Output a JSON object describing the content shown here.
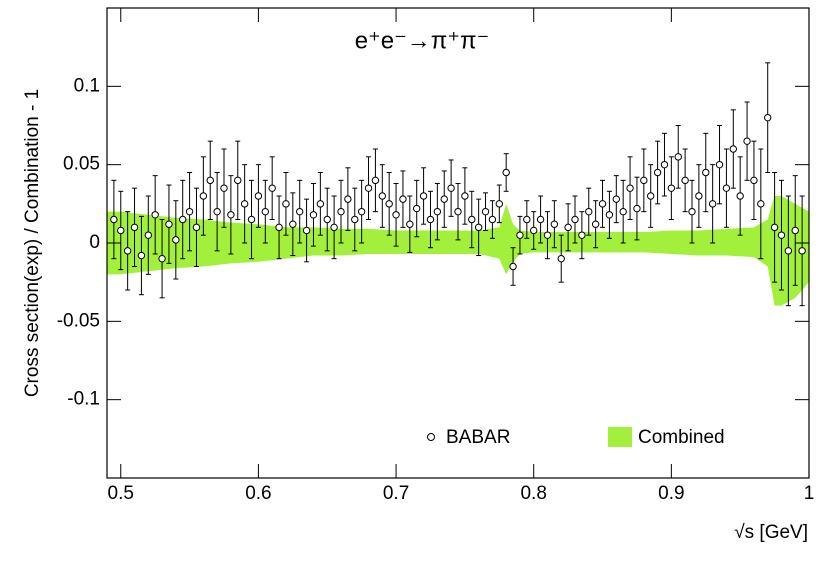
{
  "chart_data": {
    "type": "errorbar",
    "title": "e⁺e⁻→π⁺π⁻",
    "x_label": "√s   [GeV]",
    "y_label": "Cross section(exp) / Combination - 1",
    "xlim": [
      0.49,
      1.0
    ],
    "ylim": [
      -0.15,
      0.15
    ],
    "xticks": [
      0.5,
      0.6,
      0.7,
      0.8,
      0.9,
      1
    ],
    "yticks": [
      -0.1,
      -0.05,
      0,
      0.05,
      0.1
    ],
    "legend": "lower right",
    "series": [
      {
        "name": "BABAR",
        "color": "#000000",
        "x": [
          0.495,
          0.5,
          0.505,
          0.51,
          0.515,
          0.52,
          0.525,
          0.53,
          0.535,
          0.54,
          0.545,
          0.55,
          0.555,
          0.56,
          0.565,
          0.57,
          0.575,
          0.58,
          0.585,
          0.59,
          0.595,
          0.6,
          0.605,
          0.61,
          0.615,
          0.62,
          0.625,
          0.63,
          0.635,
          0.64,
          0.645,
          0.65,
          0.655,
          0.66,
          0.665,
          0.67,
          0.675,
          0.68,
          0.685,
          0.69,
          0.695,
          0.7,
          0.705,
          0.71,
          0.715,
          0.72,
          0.725,
          0.73,
          0.735,
          0.74,
          0.745,
          0.75,
          0.755,
          0.76,
          0.765,
          0.77,
          0.775,
          0.78,
          0.785,
          0.79,
          0.795,
          0.8,
          0.805,
          0.81,
          0.815,
          0.82,
          0.825,
          0.83,
          0.835,
          0.84,
          0.845,
          0.85,
          0.855,
          0.86,
          0.865,
          0.87,
          0.875,
          0.88,
          0.885,
          0.89,
          0.895,
          0.9,
          0.905,
          0.91,
          0.915,
          0.92,
          0.925,
          0.93,
          0.935,
          0.94,
          0.945,
          0.95,
          0.955,
          0.96,
          0.965,
          0.97,
          0.975,
          0.98,
          0.985,
          0.99,
          0.995
        ],
        "values": [
          0.015,
          0.008,
          -0.005,
          0.01,
          -0.008,
          0.005,
          0.018,
          -0.01,
          0.012,
          0.002,
          0.015,
          0.02,
          0.01,
          0.03,
          0.04,
          0.02,
          0.035,
          0.018,
          0.04,
          0.025,
          0.015,
          0.03,
          0.02,
          0.035,
          0.01,
          0.025,
          0.012,
          0.02,
          0.008,
          0.018,
          0.025,
          0.015,
          0.01,
          0.02,
          0.028,
          0.015,
          0.02,
          0.035,
          0.04,
          0.03,
          0.025,
          0.018,
          0.028,
          0.012,
          0.022,
          0.03,
          0.015,
          0.02,
          0.028,
          0.035,
          0.02,
          0.03,
          0.015,
          0.01,
          0.02,
          0.015,
          0.025,
          0.045,
          -0.015,
          0.005,
          0.015,
          0.008,
          0.015,
          0.005,
          0.012,
          -0.01,
          0.01,
          0.015,
          0.005,
          0.02,
          0.012,
          0.025,
          0.018,
          0.028,
          0.02,
          0.035,
          0.022,
          0.04,
          0.03,
          0.045,
          0.05,
          0.035,
          0.055,
          0.04,
          0.02,
          0.03,
          0.045,
          0.025,
          0.05,
          0.035,
          0.06,
          0.03,
          0.065,
          0.04,
          0.025,
          0.08,
          0.01,
          0.005,
          -0.005,
          0.008,
          -0.005
        ],
        "errors": [
          0.025,
          0.025,
          0.025,
          0.025,
          0.025,
          0.025,
          0.025,
          0.025,
          0.025,
          0.025,
          0.025,
          0.025,
          0.025,
          0.025,
          0.025,
          0.025,
          0.025,
          0.025,
          0.025,
          0.025,
          0.025,
          0.02,
          0.02,
          0.02,
          0.02,
          0.02,
          0.02,
          0.02,
          0.02,
          0.02,
          0.02,
          0.02,
          0.02,
          0.02,
          0.02,
          0.02,
          0.02,
          0.02,
          0.02,
          0.02,
          0.02,
          0.02,
          0.018,
          0.018,
          0.018,
          0.018,
          0.018,
          0.018,
          0.018,
          0.018,
          0.018,
          0.018,
          0.018,
          0.018,
          0.012,
          0.012,
          0.012,
          0.012,
          0.012,
          0.012,
          0.012,
          0.012,
          0.015,
          0.015,
          0.015,
          0.015,
          0.015,
          0.015,
          0.015,
          0.015,
          0.015,
          0.015,
          0.015,
          0.015,
          0.02,
          0.02,
          0.02,
          0.02,
          0.02,
          0.02,
          0.02,
          0.02,
          0.02,
          0.02,
          0.02,
          0.02,
          0.025,
          0.025,
          0.025,
          0.025,
          0.025,
          0.025,
          0.025,
          0.025,
          0.035,
          0.035,
          0.035,
          0.035,
          0.035,
          0.035,
          0.035
        ]
      },
      {
        "name": "Combined",
        "color": "#a3f03c",
        "x": [
          0.49,
          0.5,
          0.52,
          0.54,
          0.56,
          0.58,
          0.6,
          0.62,
          0.64,
          0.66,
          0.68,
          0.7,
          0.72,
          0.74,
          0.76,
          0.775,
          0.78,
          0.785,
          0.79,
          0.8,
          0.82,
          0.84,
          0.86,
          0.88,
          0.9,
          0.92,
          0.94,
          0.96,
          0.97,
          0.975,
          0.98,
          0.99,
          1.0
        ],
        "upper": [
          0.02,
          0.02,
          0.018,
          0.016,
          0.015,
          0.013,
          0.012,
          0.01,
          0.01,
          0.009,
          0.009,
          0.008,
          0.008,
          0.008,
          0.008,
          0.01,
          0.025,
          0.012,
          0.008,
          0.007,
          0.007,
          0.007,
          0.007,
          0.007,
          0.008,
          0.008,
          0.009,
          0.01,
          0.015,
          0.03,
          0.03,
          0.025,
          0.02
        ],
        "lower": [
          -0.02,
          -0.02,
          -0.018,
          -0.016,
          -0.015,
          -0.013,
          -0.012,
          -0.01,
          -0.008,
          -0.008,
          -0.007,
          -0.007,
          -0.007,
          -0.007,
          -0.007,
          -0.01,
          -0.02,
          -0.012,
          -0.007,
          -0.006,
          -0.006,
          -0.006,
          -0.006,
          -0.006,
          -0.007,
          -0.008,
          -0.008,
          -0.009,
          -0.015,
          -0.04,
          -0.04,
          -0.035,
          -0.025
        ]
      }
    ]
  }
}
